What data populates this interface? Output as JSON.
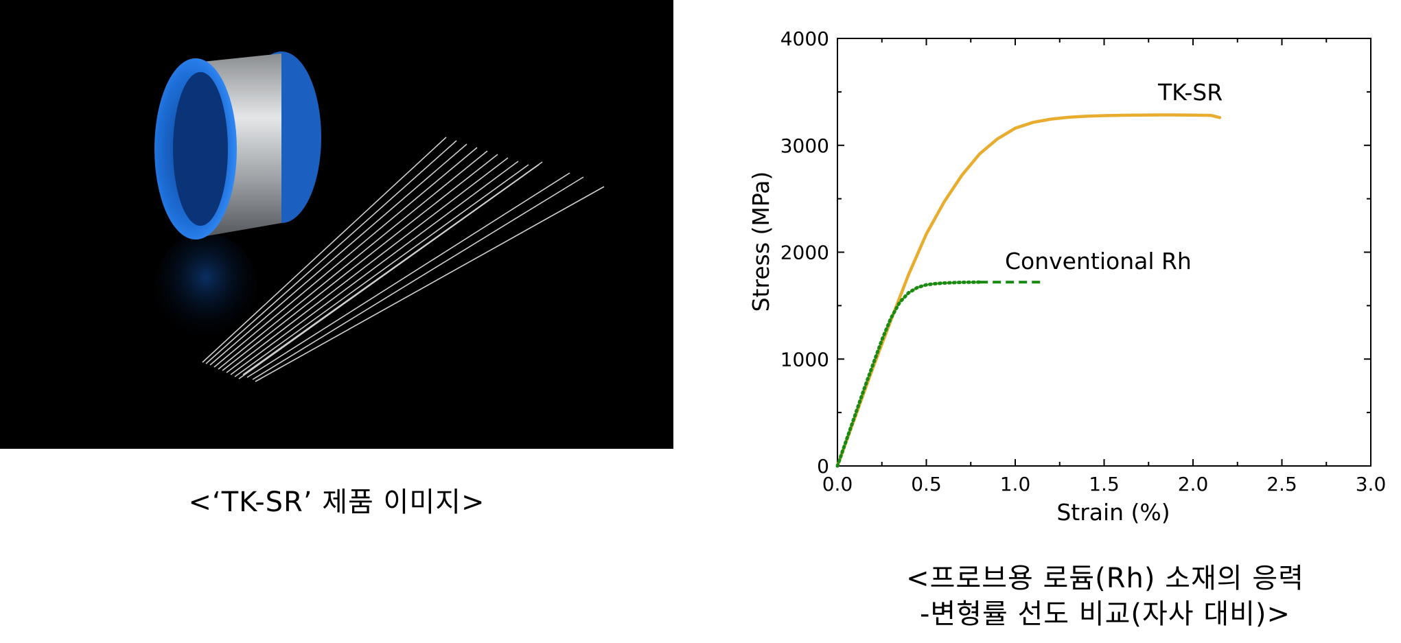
{
  "photo": {
    "caption": "<‘TK-SR’ 제품 이미지>",
    "colors": {
      "background": "#000000",
      "spool_flange": "#1e6fd9",
      "spool_core": "#b8bcc0",
      "wire": "#e8e8e8"
    }
  },
  "chart_data": {
    "type": "line",
    "xlabel": "Strain (%)",
    "ylabel": "Stress (MPa)",
    "xlim": [
      0,
      3.0
    ],
    "ylim": [
      0,
      4000
    ],
    "xticks": [
      "0.0",
      "0.5",
      "1.0",
      "1.5",
      "2.0",
      "2.5",
      "3.0"
    ],
    "yticks": [
      "0",
      "1000",
      "2000",
      "3000",
      "4000"
    ],
    "grid": false,
    "series": [
      {
        "name": "TK-SR",
        "color": "#e8ac2e",
        "style": "solid",
        "x": [
          0.0,
          0.05,
          0.1,
          0.15,
          0.2,
          0.3,
          0.4,
          0.5,
          0.6,
          0.7,
          0.8,
          0.9,
          1.0,
          1.1,
          1.2,
          1.3,
          1.4,
          1.5,
          1.6,
          1.7,
          1.8,
          1.9,
          2.0,
          2.1,
          2.15
        ],
        "y": [
          0,
          230,
          460,
          690,
          920,
          1360,
          1790,
          2170,
          2470,
          2720,
          2920,
          3060,
          3160,
          3215,
          3245,
          3262,
          3272,
          3278,
          3281,
          3283,
          3284,
          3284,
          3283,
          3280,
          3260
        ]
      },
      {
        "name": "Conventional Rh",
        "color": "#1a8a12",
        "style": "dotted-dashed",
        "x": [
          0.0,
          0.05,
          0.1,
          0.15,
          0.2,
          0.25,
          0.3,
          0.35,
          0.4,
          0.45,
          0.5,
          0.55,
          0.6,
          0.7,
          0.8,
          0.9,
          1.0,
          1.1,
          1.14
        ],
        "y": [
          0,
          240,
          480,
          720,
          950,
          1180,
          1380,
          1530,
          1620,
          1670,
          1695,
          1705,
          1712,
          1718,
          1720,
          1720,
          1720,
          1720,
          1720
        ]
      }
    ],
    "annotations": [
      "TK-SR",
      "Conventional Rh"
    ]
  },
  "chart_caption_line1": "<프로브용 로듐(Rh) 소재의 응력",
  "chart_caption_line2": "-변형률 선도 비교(자사 대비)>"
}
